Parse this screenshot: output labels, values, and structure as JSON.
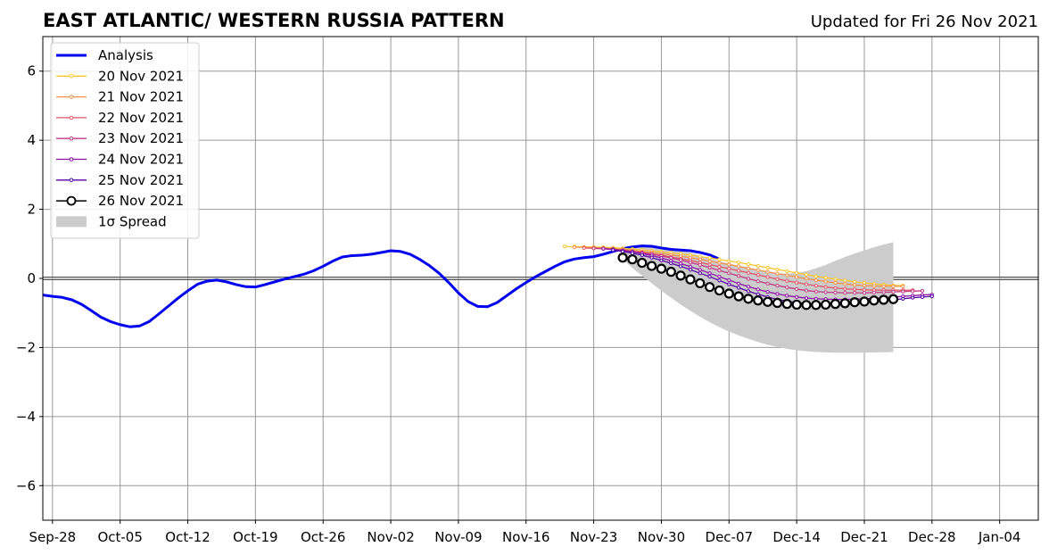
{
  "chart_data": {
    "type": "line",
    "title": "EAST ATLANTIC/ WESTERN RUSSIA PATTERN",
    "subtitle": "Updated for Fri 26 Nov 2021",
    "xlabel": "",
    "ylabel": "",
    "x_range": [
      "2021-09-27",
      "2022-01-08"
    ],
    "ylim": [
      -7,
      7
    ],
    "y_ticks": [
      -6,
      -4,
      -2,
      0,
      2,
      4,
      6
    ],
    "y_tick_labels": [
      "−6",
      "−4",
      "−2",
      "0",
      "2",
      "4",
      "6"
    ],
    "x_ticks": [
      "2021-09-28",
      "2021-10-05",
      "2021-10-12",
      "2021-10-19",
      "2021-10-26",
      "2021-11-02",
      "2021-11-09",
      "2021-11-16",
      "2021-11-23",
      "2021-11-30",
      "2021-12-07",
      "2021-12-14",
      "2021-12-21",
      "2021-12-28",
      "2022-01-04"
    ],
    "x_tick_labels": [
      "Sep-28",
      "Oct-05",
      "Oct-12",
      "Oct-19",
      "Oct-26",
      "Nov-02",
      "Nov-09",
      "Nov-16",
      "Nov-23",
      "Nov-30",
      "Dec-07",
      "Dec-14",
      "Dec-21",
      "Dec-28",
      "Jan-04"
    ],
    "grid": true,
    "zero_line": true,
    "legend_position": "top-left",
    "analysis": {
      "name": "Analysis",
      "color": "#0000ee",
      "start_date": "2021-09-27",
      "values": [
        -0.48,
        -0.52,
        -0.55,
        -0.62,
        -0.75,
        -0.93,
        -1.12,
        -1.25,
        -1.34,
        -1.4,
        -1.38,
        -1.25,
        -1.03,
        -0.8,
        -0.57,
        -0.36,
        -0.17,
        -0.08,
        -0.05,
        -0.1,
        -0.18,
        -0.24,
        -0.25,
        -0.18,
        -0.1,
        -0.02,
        0.05,
        0.12,
        0.22,
        0.35,
        0.5,
        0.62,
        0.66,
        0.67,
        0.7,
        0.75,
        0.8,
        0.78,
        0.7,
        0.55,
        0.37,
        0.15,
        -0.12,
        -0.42,
        -0.67,
        -0.81,
        -0.82,
        -0.7,
        -0.5,
        -0.3,
        -0.12,
        0.05,
        0.2,
        0.35,
        0.48,
        0.56,
        0.6,
        0.63,
        0.7,
        0.78,
        0.86,
        0.91,
        0.94,
        0.93,
        0.88,
        0.84,
        0.82,
        0.8,
        0.75,
        0.68,
        0.56
      ]
    },
    "spread": {
      "name": "1σ Spread",
      "color": "#cccccc",
      "start_date": "2021-11-26",
      "upper": [
        0.85,
        0.9,
        0.94,
        0.95,
        0.93,
        0.88,
        0.82,
        0.74,
        0.66,
        0.58,
        0.5,
        0.43,
        0.36,
        0.29,
        0.23,
        0.18,
        0.15,
        0.14,
        0.16,
        0.21,
        0.29,
        0.39,
        0.51,
        0.62,
        0.72,
        0.81,
        0.9,
        0.98,
        1.05
      ],
      "lower": [
        0.55,
        0.3,
        0.08,
        -0.14,
        -0.36,
        -0.56,
        -0.76,
        -0.94,
        -1.11,
        -1.27,
        -1.41,
        -1.54,
        -1.65,
        -1.75,
        -1.84,
        -1.92,
        -1.98,
        -2.04,
        -2.08,
        -2.11,
        -2.13,
        -2.14,
        -2.15,
        -2.15,
        -2.15,
        -2.15,
        -2.14,
        -2.14,
        -2.13
      ]
    },
    "forecasts": [
      {
        "name": "20 Nov 2021",
        "color": "#fbc62f",
        "start_date": "2021-11-20",
        "values": [
          0.92,
          0.92,
          0.91,
          0.91,
          0.9,
          0.89,
          0.87,
          0.85,
          0.83,
          0.8,
          0.77,
          0.74,
          0.71,
          0.67,
          0.63,
          0.59,
          0.55,
          0.5,
          0.46,
          0.41,
          0.36,
          0.31,
          0.26,
          0.21,
          0.16,
          0.11,
          0.06,
          0.02,
          -0.02,
          -0.06,
          -0.1,
          -0.13,
          -0.16,
          -0.18,
          -0.2,
          -0.21
        ]
      },
      {
        "name": "21 Nov 2021",
        "color": "#f58f4a",
        "start_date": "2021-11-21",
        "values": [
          0.9,
          0.9,
          0.89,
          0.88,
          0.86,
          0.84,
          0.81,
          0.78,
          0.75,
          0.72,
          0.68,
          0.64,
          0.6,
          0.55,
          0.5,
          0.45,
          0.4,
          0.35,
          0.29,
          0.24,
          0.19,
          0.14,
          0.09,
          0.04,
          -0.01,
          -0.05,
          -0.09,
          -0.13,
          -0.16,
          -0.19,
          -0.21,
          -0.22,
          -0.23,
          -0.23,
          -0.23
        ]
      },
      {
        "name": "22 Nov 2021",
        "color": "#e25467",
        "start_date": "2021-11-22",
        "values": [
          0.88,
          0.87,
          0.86,
          0.84,
          0.81,
          0.78,
          0.75,
          0.71,
          0.67,
          0.62,
          0.57,
          0.52,
          0.46,
          0.4,
          0.34,
          0.28,
          0.22,
          0.16,
          0.1,
          0.04,
          -0.02,
          -0.07,
          -0.12,
          -0.17,
          -0.21,
          -0.25,
          -0.28,
          -0.3,
          -0.32,
          -0.33,
          -0.34,
          -0.34,
          -0.34,
          -0.34,
          -0.34
        ]
      },
      {
        "name": "23 Nov 2021",
        "color": "#bf3984",
        "start_date": "2021-11-23",
        "values": [
          0.87,
          0.86,
          0.84,
          0.81,
          0.78,
          0.74,
          0.7,
          0.65,
          0.59,
          0.53,
          0.46,
          0.39,
          0.31,
          0.23,
          0.15,
          0.07,
          -0.01,
          -0.08,
          -0.15,
          -0.21,
          -0.26,
          -0.31,
          -0.35,
          -0.38,
          -0.4,
          -0.41,
          -0.42,
          -0.42,
          -0.42,
          -0.41,
          -0.4,
          -0.39,
          -0.38,
          -0.37,
          -0.36
        ]
      },
      {
        "name": "24 Nov 2021",
        "color": "#8b0aa5",
        "start_date": "2021-11-24",
        "values": [
          0.86,
          0.84,
          0.81,
          0.77,
          0.72,
          0.66,
          0.59,
          0.51,
          0.43,
          0.34,
          0.25,
          0.15,
          0.05,
          -0.05,
          -0.15,
          -0.24,
          -0.32,
          -0.39,
          -0.45,
          -0.5,
          -0.54,
          -0.57,
          -0.59,
          -0.6,
          -0.61,
          -0.61,
          -0.6,
          -0.59,
          -0.58,
          -0.56,
          -0.54,
          -0.52,
          -0.5,
          -0.48,
          -0.47
        ]
      },
      {
        "name": "25 Nov 2021",
        "color": "#5302a3",
        "start_date": "2021-11-25",
        "values": [
          0.82,
          0.78,
          0.73,
          0.67,
          0.6,
          0.52,
          0.44,
          0.35,
          0.25,
          0.15,
          0.05,
          -0.06,
          -0.17,
          -0.27,
          -0.37,
          -0.46,
          -0.54,
          -0.61,
          -0.66,
          -0.7,
          -0.73,
          -0.75,
          -0.76,
          -0.76,
          -0.75,
          -0.73,
          -0.71,
          -0.68,
          -0.65,
          -0.62,
          -0.59,
          -0.56,
          -0.54,
          -0.52
        ]
      },
      {
        "name": "26 Nov 2021",
        "color": "#000000",
        "start_date": "2021-11-26",
        "values": [
          0.6,
          0.55,
          0.45,
          0.36,
          0.28,
          0.19,
          0.08,
          -0.03,
          -0.14,
          -0.25,
          -0.35,
          -0.44,
          -0.52,
          -0.59,
          -0.64,
          -0.68,
          -0.71,
          -0.74,
          -0.76,
          -0.77,
          -0.77,
          -0.76,
          -0.74,
          -0.72,
          -0.69,
          -0.67,
          -0.64,
          -0.62,
          -0.6
        ]
      }
    ]
  }
}
